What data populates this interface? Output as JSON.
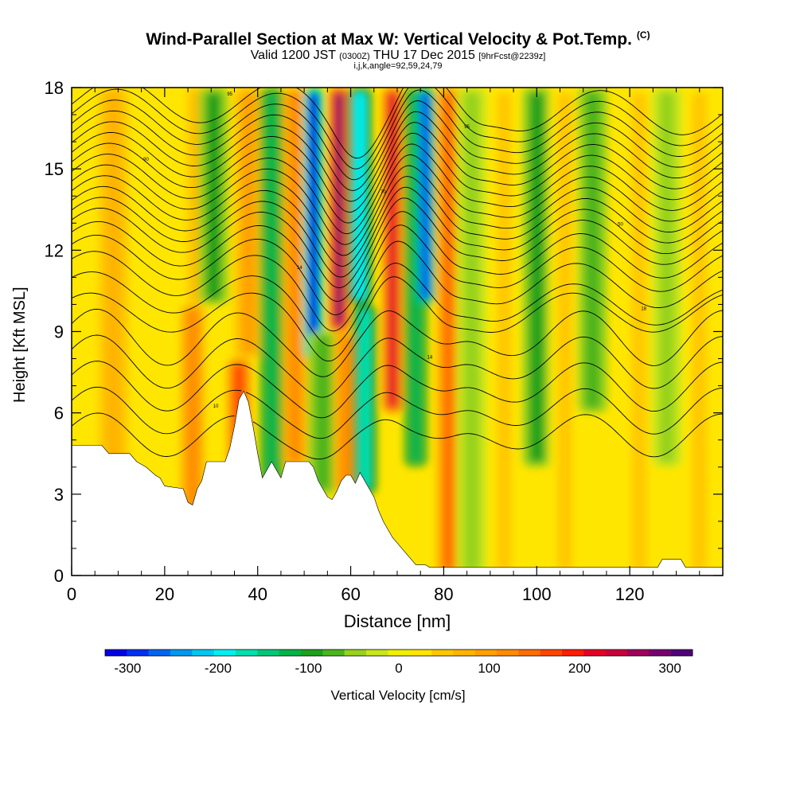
{
  "header": {
    "title": "Wind-Parallel Section at Max W: Vertical Velocity & Pot.Temp.",
    "copyright": "(C)",
    "valid_main_a": "Valid 1200 JST ",
    "valid_utc": "(0300Z)",
    "valid_main_b": " THU 17 Dec 2015 ",
    "valid_fcst": "[9hrFcst@2239z]",
    "grid_info": "i,j,k,angle=92,59,24,79"
  },
  "chart_data": {
    "type": "heatmap",
    "title": "Wind-Parallel Section at Max W: Vertical Velocity & Pot.Temp.",
    "xlabel": "Distance [nm]",
    "ylabel": "Height [Kft MSL]",
    "xlim": [
      0,
      140
    ],
    "ylim": [
      0,
      18
    ],
    "x_ticks": [
      "0",
      "20",
      "40",
      "60",
      "80",
      "100",
      "120"
    ],
    "y_ticks": [
      "0",
      "3",
      "6",
      "9",
      "12",
      "15",
      "18"
    ],
    "field": "Vertical Velocity",
    "colorbar_label": "Vertical Velocity [cm/s]",
    "colorbar_ticks": [
      "-300",
      "-200",
      "-100",
      "0",
      "100",
      "200",
      "300"
    ],
    "colorbar_range": [
      -325,
      325
    ],
    "colorbar_colors": [
      "#0000e6",
      "#0030f0",
      "#0066f0",
      "#0099f0",
      "#00c8f0",
      "#00f0f0",
      "#00e0b0",
      "#00c878",
      "#00b448",
      "#1ea01e",
      "#4cb41e",
      "#96d21e",
      "#c8e61e",
      "#f0f000",
      "#ffe600",
      "#ffc800",
      "#ffb400",
      "#ffa000",
      "#ff8c00",
      "#ff6e00",
      "#ff4600",
      "#ff1e00",
      "#e60028",
      "#c8003c",
      "#a0005a",
      "#78006e",
      "#500078"
    ],
    "contour_field": "Potential Temperature",
    "w_bands": [
      {
        "x": 9,
        "z": [
          0,
          18
        ],
        "w": 80
      },
      {
        "x": 26,
        "z": [
          2,
          10
        ],
        "w": 110
      },
      {
        "x": 28,
        "z": [
          10,
          18
        ],
        "w": 70
      },
      {
        "x": 30.5,
        "z": [
          10,
          18
        ],
        "w": -100
      },
      {
        "x": 36,
        "z": [
          4,
          8
        ],
        "w": 170
      },
      {
        "x": 38,
        "z": [
          8,
          18
        ],
        "w": 90
      },
      {
        "x": 43,
        "z": [
          2,
          18
        ],
        "w": -110
      },
      {
        "x": 48,
        "z": [
          4,
          18
        ],
        "w": 110
      },
      {
        "x": 52,
        "z": [
          8,
          18
        ],
        "w": -310
      },
      {
        "x": 54,
        "z": [
          3,
          9
        ],
        "w": -80
      },
      {
        "x": 57.5,
        "z": [
          9,
          18
        ],
        "w": 270
      },
      {
        "x": 59,
        "z": [
          3,
          9
        ],
        "w": 130
      },
      {
        "x": 63,
        "z": [
          3,
          10
        ],
        "w": -180
      },
      {
        "x": 62,
        "z": [
          10,
          18
        ],
        "w": -190
      },
      {
        "x": 69,
        "z": [
          6,
          18
        ],
        "w": 210
      },
      {
        "x": 74,
        "z": [
          4,
          18
        ],
        "w": -120
      },
      {
        "x": 76,
        "z": [
          10,
          18
        ],
        "w": -260
      },
      {
        "x": 81,
        "z": [
          0,
          18
        ],
        "w": 140
      },
      {
        "x": 86,
        "z": [
          0,
          18
        ],
        "w": -60
      },
      {
        "x": 93,
        "z": [
          0,
          18
        ],
        "w": 60
      },
      {
        "x": 100,
        "z": [
          4,
          18
        ],
        "w": -90
      },
      {
        "x": 106,
        "z": [
          0,
          18
        ],
        "w": 50
      },
      {
        "x": 112,
        "z": [
          6,
          18
        ],
        "w": -70
      },
      {
        "x": 122,
        "z": [
          0,
          18
        ],
        "w": 40
      },
      {
        "x": 128,
        "z": [
          4,
          18
        ],
        "w": -50
      },
      {
        "x": 135,
        "z": [
          0,
          18
        ],
        "w": 60
      }
    ],
    "terrain_kft": [
      [
        0,
        4.8
      ],
      [
        6.5,
        4.8
      ],
      [
        8,
        4.5
      ],
      [
        12.5,
        4.5
      ],
      [
        14,
        4.2
      ],
      [
        16,
        4.0
      ],
      [
        18,
        3.7
      ],
      [
        19,
        3.6
      ],
      [
        20,
        3.3
      ],
      [
        24,
        3.2
      ],
      [
        25,
        2.7
      ],
      [
        26,
        2.6
      ],
      [
        27,
        3.2
      ],
      [
        28,
        3.5
      ],
      [
        29,
        4.2
      ],
      [
        33,
        4.2
      ],
      [
        34,
        4.7
      ],
      [
        35,
        5.5
      ],
      [
        36,
        6.5
      ],
      [
        37,
        6.8
      ],
      [
        38,
        6.4
      ],
      [
        39,
        5.5
      ],
      [
        40,
        4.5
      ],
      [
        41,
        3.6
      ],
      [
        42,
        3.9
      ],
      [
        43,
        4.2
      ],
      [
        44,
        3.9
      ],
      [
        45,
        3.6
      ],
      [
        46,
        4.2
      ],
      [
        51,
        4.2
      ],
      [
        52,
        4.0
      ],
      [
        53,
        3.5
      ],
      [
        54,
        3.2
      ],
      [
        55,
        2.9
      ],
      [
        56,
        2.8
      ],
      [
        57,
        3.1
      ],
      [
        58,
        3.5
      ],
      [
        59,
        3.7
      ],
      [
        60,
        3.7
      ],
      [
        61,
        3.4
      ],
      [
        62,
        3.8
      ],
      [
        63,
        3.5
      ],
      [
        64,
        3.2
      ],
      [
        65,
        2.9
      ],
      [
        66,
        2.4
      ],
      [
        67,
        2.0
      ],
      [
        68,
        1.7
      ],
      [
        69,
        1.4
      ],
      [
        70,
        1.2
      ],
      [
        71,
        1.0
      ],
      [
        72,
        0.8
      ],
      [
        73,
        0.6
      ],
      [
        74,
        0.4
      ],
      [
        76,
        0.4
      ],
      [
        77,
        0.3
      ],
      [
        126,
        0.3
      ],
      [
        127,
        0.6
      ],
      [
        131,
        0.6
      ],
      [
        132,
        0.3
      ],
      [
        140,
        0.3
      ]
    ],
    "theta_contours": [
      {
        "base": 5.2,
        "amp": 0.7,
        "label": ""
      },
      {
        "base": 6.1,
        "amp": 0.8,
        "label": "10"
      },
      {
        "base": 7.0,
        "amp": 0.9,
        "label": ""
      },
      {
        "base": 7.9,
        "amp": 1.0,
        "label": "14"
      },
      {
        "base": 8.8,
        "amp": 1.1,
        "label": ""
      },
      {
        "base": 9.7,
        "amp": 1.2,
        "label": "18"
      },
      {
        "base": 10.5,
        "amp": 1.2,
        "label": ""
      },
      {
        "base": 11.2,
        "amp": 1.3,
        "label": "14"
      },
      {
        "base": 11.8,
        "amp": 1.3,
        "label": ""
      },
      {
        "base": 12.3,
        "amp": 1.3,
        "label": ""
      },
      {
        "base": 12.8,
        "amp": 1.3,
        "label": "50"
      },
      {
        "base": 13.2,
        "amp": 1.3,
        "label": ""
      },
      {
        "base": 13.6,
        "amp": 1.3,
        "label": ""
      },
      {
        "base": 14.0,
        "amp": 1.3,
        "label": "70"
      },
      {
        "base": 14.4,
        "amp": 1.3,
        "label": ""
      },
      {
        "base": 14.8,
        "amp": 1.3,
        "label": ""
      },
      {
        "base": 15.2,
        "amp": 1.3,
        "label": "90"
      },
      {
        "base": 15.6,
        "amp": 1.3,
        "label": ""
      },
      {
        "base": 16.0,
        "amp": 1.3,
        "label": ""
      },
      {
        "base": 16.4,
        "amp": 1.3,
        "label": "95"
      },
      {
        "base": 16.8,
        "amp": 1.3,
        "label": ""
      },
      {
        "base": 17.2,
        "amp": 1.3,
        "label": ""
      },
      {
        "base": 17.6,
        "amp": 1.3,
        "label": "95"
      }
    ]
  }
}
